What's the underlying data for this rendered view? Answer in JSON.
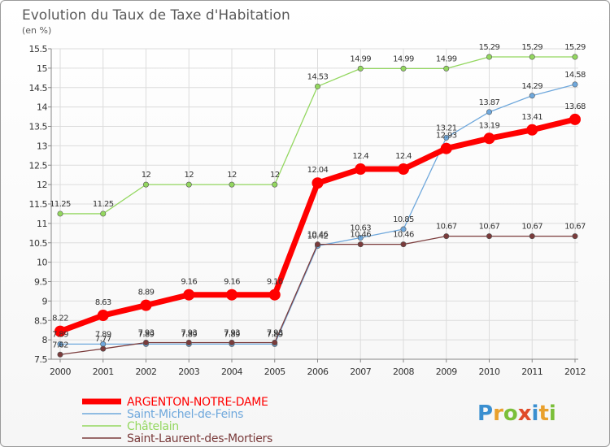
{
  "chart_data": {
    "type": "line",
    "title": "Evolution du Taux de Taxe d'Habitation",
    "ylabel": "(en %)",
    "xlabel": "",
    "x": [
      "2000",
      "2001",
      "2002",
      "2003",
      "2004",
      "2005",
      "2006",
      "2007",
      "2008",
      "2009",
      "2010",
      "2011",
      "2012"
    ],
    "ylim": [
      7.5,
      15.5
    ],
    "yticks": [
      "7.5",
      "8",
      "8.5",
      "9",
      "9.5",
      "10",
      "10.5",
      "11",
      "11.5",
      "12",
      "12.5",
      "13",
      "13.5",
      "14",
      "14.5",
      "15",
      "15.5"
    ],
    "grid": true,
    "legend_position": "bottom-left",
    "series": [
      {
        "name": "ARGENTON-NOTRE-DAME",
        "color": "#ff0000",
        "values": [
          8.22,
          8.63,
          8.89,
          9.16,
          9.16,
          9.16,
          12.04,
          12.4,
          12.4,
          12.93,
          13.19,
          13.41,
          13.68
        ],
        "labels": [
          "8.22",
          "8.63",
          "8.89",
          "9.16",
          "9.16",
          "9.16",
          "12.04",
          "12.4",
          "12.4",
          "12.93",
          "13.19",
          "13.41",
          "13.68"
        ]
      },
      {
        "name": "Saint-Michel-de-Feins",
        "color": "#6fa8dc",
        "values": [
          7.89,
          7.89,
          7.89,
          7.89,
          7.89,
          7.89,
          10.42,
          10.63,
          10.85,
          13.21,
          13.87,
          14.29,
          14.58
        ],
        "labels": [
          "7.89",
          "7.89",
          "7.89",
          "7.89",
          "7.89",
          "7.89",
          "10.42",
          "10.63",
          "10.85",
          "13.21",
          "13.87",
          "14.29",
          "14.58"
        ]
      },
      {
        "name": "Châtelain",
        "color": "#93d75f",
        "values": [
          11.25,
          11.25,
          12,
          12,
          12,
          12,
          14.53,
          14.99,
          14.99,
          14.99,
          15.29,
          15.29,
          15.29
        ],
        "labels": [
          "11.25",
          "11.25",
          "12",
          "12",
          "12",
          "12",
          "14.53",
          "14.99",
          "14.99",
          "14.99",
          "15.29",
          "15.29",
          "15.29"
        ]
      },
      {
        "name": "Saint-Laurent-des-Mortiers",
        "color": "#7a3b3b",
        "values": [
          7.62,
          7.77,
          7.93,
          7.93,
          7.93,
          7.93,
          10.46,
          10.46,
          10.46,
          10.67,
          10.67,
          10.67,
          10.67
        ],
        "labels": [
          "7.62",
          "7.77",
          "7.93",
          "7.93",
          "7.93",
          "7.93",
          "10.46",
          "10.46",
          "10.46",
          "10.67",
          "10.67",
          "10.67",
          "10.67"
        ]
      }
    ]
  },
  "logo": {
    "text": "Proxiti"
  }
}
